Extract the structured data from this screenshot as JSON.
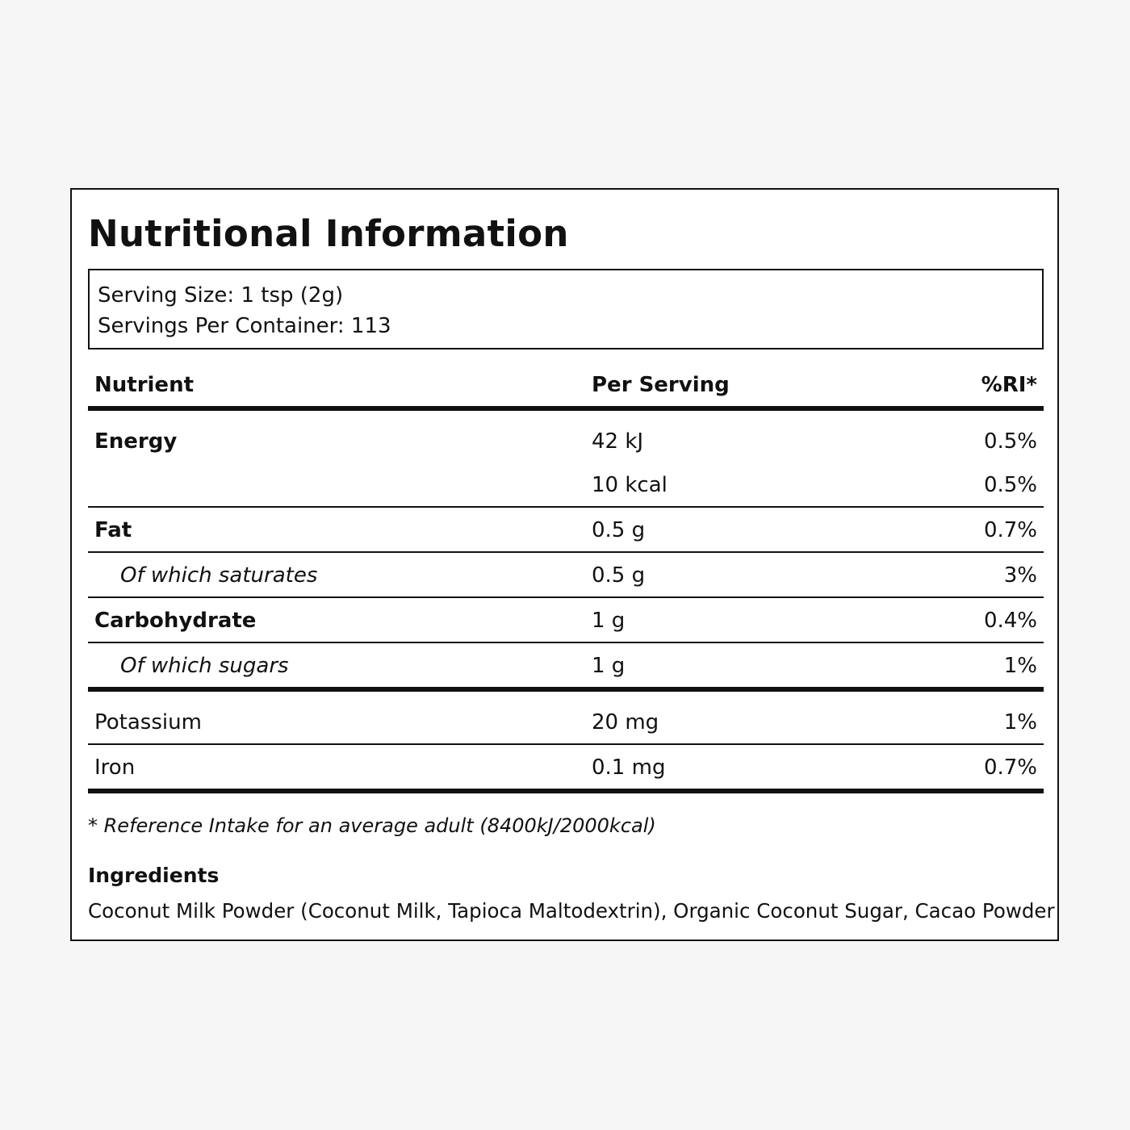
{
  "label": {
    "title": "Nutritional Information",
    "serving_size": "Serving Size: 1 tsp (2g)",
    "servings_per_container": "Servings Per Container: 113"
  },
  "table": {
    "headers": {
      "nutrient": "Nutrient",
      "per_serving": "Per Serving",
      "ri": "%RI*"
    },
    "rows": [
      {
        "nutrient": "Energy",
        "per_serving": "42 kJ",
        "ri": "0.5%"
      },
      {
        "nutrient": "",
        "per_serving": "10 kcal",
        "ri": "0.5%"
      },
      {
        "nutrient": "Fat",
        "per_serving": "0.5 g",
        "ri": "0.7%"
      },
      {
        "nutrient": "Of which saturates",
        "per_serving": "0.5 g",
        "ri": "3%"
      },
      {
        "nutrient": "Carbohydrate",
        "per_serving": "1 g",
        "ri": "0.4%"
      },
      {
        "nutrient": "Of which sugars",
        "per_serving": "1 g",
        "ri": "1%"
      },
      {
        "nutrient": "Potassium",
        "per_serving": "20 mg",
        "ri": "1%"
      },
      {
        "nutrient": "Iron",
        "per_serving": "0.1 mg",
        "ri": "0.7%"
      }
    ]
  },
  "footnote": "* Reference Intake for an average adult (8400kJ/2000kcal)",
  "ingredients": {
    "title": "Ingredients",
    "text": "Coconut Milk Powder (Coconut Milk, Tapioca Maltodextrin), Organic Coconut Sugar, Cacao Powder"
  }
}
